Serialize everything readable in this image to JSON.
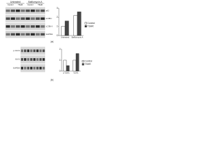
{
  "panel_labels": [
    "(a)",
    "(b)"
  ],
  "blots": [
    {
      "lanes": [
        "Untreated",
        "Bafilomycin A"
      ],
      "conditions": [
        "Control",
        "TSHR",
        "Control",
        "TSHR"
      ],
      "rows": [
        "p62",
        "LC3B-I",
        "LC3B-II",
        "GAPDH"
      ]
    },
    {
      "lanes": [],
      "conditions": [],
      "rows": [
        "p-ULK1",
        "ULK1",
        "GAPDH"
      ]
    }
  ],
  "chart_data": [
    {
      "type": "bar",
      "categories": [
        "Untreated",
        "Bafilomycin A"
      ],
      "series": [
        {
          "name": "Control",
          "color": "#ffffff",
          "values": [
            1,
            2.2
          ]
        },
        {
          "name": "TSHR",
          "color": "#444444",
          "values": [
            1.6,
            2.6
          ]
        }
      ],
      "ylim": [
        0,
        3
      ],
      "yticks": [
        0,
        1,
        2,
        3
      ],
      "legend": "right"
    },
    {
      "type": "bar",
      "categories": [
        "p-ULK1",
        "ULK1"
      ],
      "series": [
        {
          "name": "Control",
          "color": "#ffffff",
          "values": [
            1,
            1
          ]
        },
        {
          "name": "TSHR",
          "color": "#444444",
          "values": [
            0.5,
            1.6
          ]
        }
      ],
      "ylim": [
        0,
        2
      ],
      "yticks": [
        0,
        1,
        2
      ],
      "legend": "right"
    }
  ]
}
